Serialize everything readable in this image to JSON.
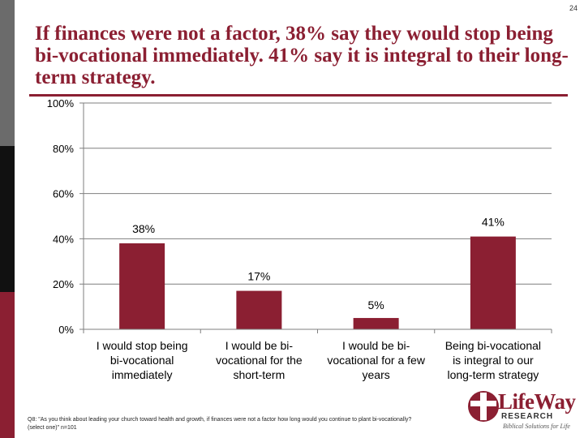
{
  "page_number": "24",
  "title": "If finances were not a factor, 38% say they would stop being bi-vocational immediately. 41% say it is integral to their long-term strategy.",
  "chart_data": {
    "type": "bar",
    "categories": [
      "I would stop being bi-vocational immediately",
      "I would be bi-vocational for the short-term",
      "I would be bi-vocational for a few years",
      "Being bi-vocational is integral to our long-term strategy"
    ],
    "category_lines": [
      [
        "I would stop being",
        "bi-vocational",
        "immediately"
      ],
      [
        "I would be bi-",
        "vocational for the",
        "short-term"
      ],
      [
        "I would be bi-",
        "vocational for a few",
        "years"
      ],
      [
        "Being bi-vocational",
        "is integral to our",
        "long-term strategy"
      ]
    ],
    "values": [
      38,
      17,
      5,
      41
    ],
    "value_labels": [
      "38%",
      "17%",
      "5%",
      "41%"
    ],
    "y_ticks": [
      "0%",
      "20%",
      "40%",
      "60%",
      "80%",
      "100%"
    ],
    "ylim": [
      0,
      100
    ],
    "bar_color": "#8b1f32"
  },
  "footnote": "Q8: \"As you think about leading your church toward health and growth, if finances were not a factor how long would you continue to plant bi-vocationally? (select one)\" n=101",
  "logo": {
    "name": "LifeWay",
    "sub": "RESEARCH",
    "tagline": "Biblical Solutions for Life"
  },
  "colors": {
    "accent": "#8b1f32",
    "gray": "#6b6b6b",
    "dark": "#111111"
  }
}
